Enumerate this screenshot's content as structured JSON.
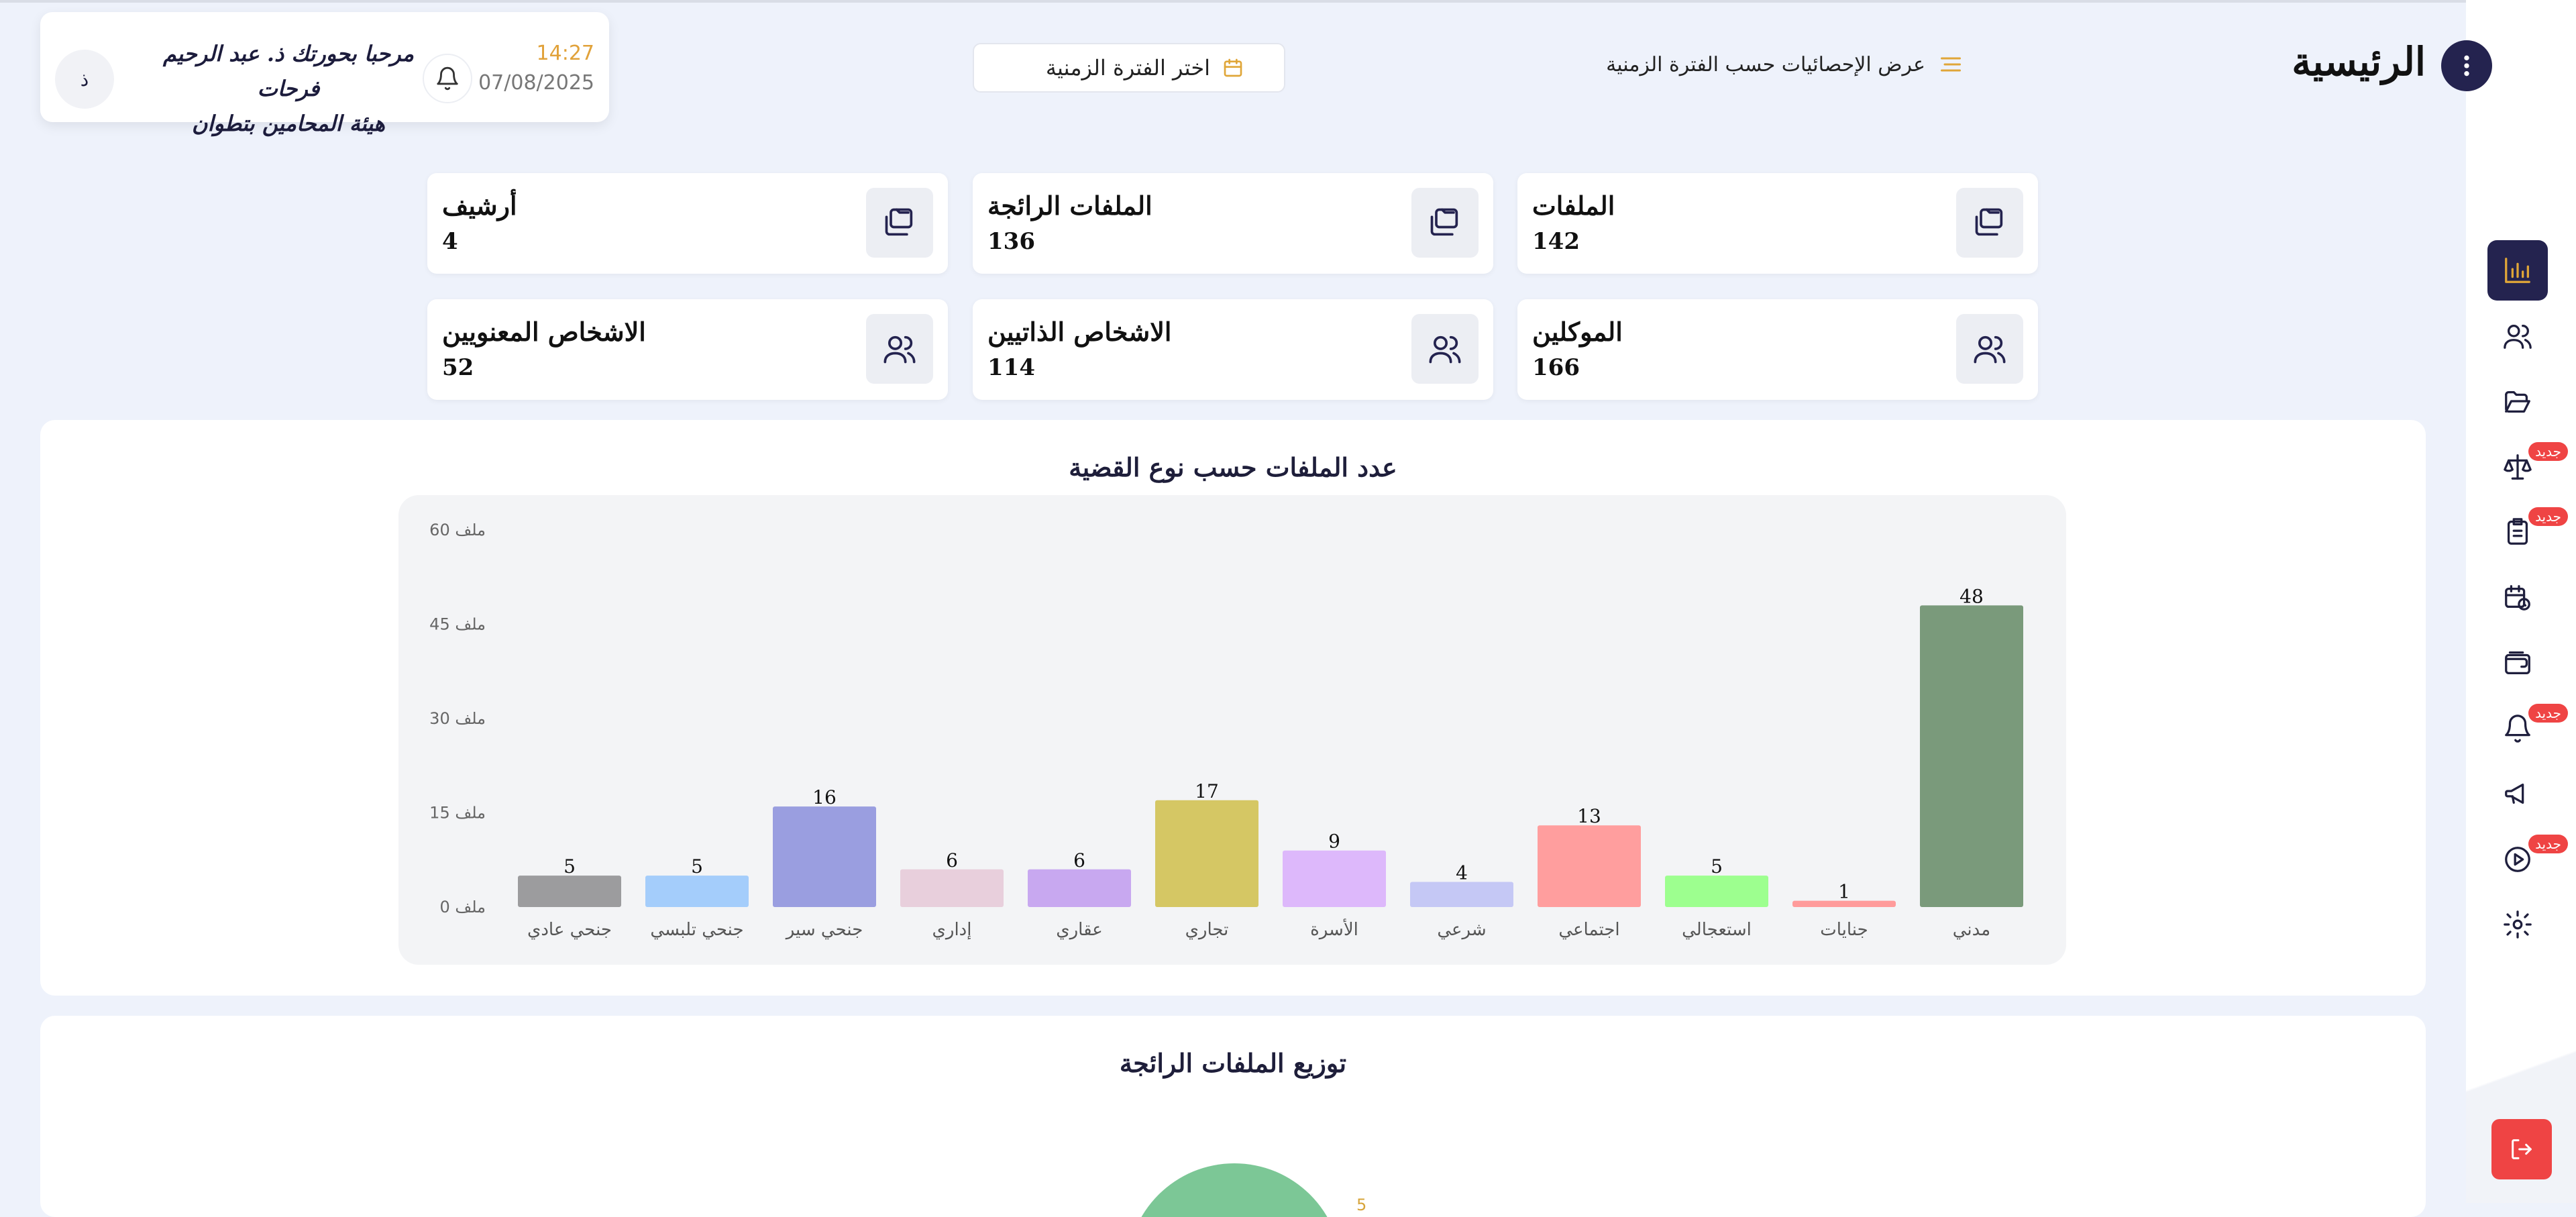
{
  "header": {
    "title": "الرئيسية",
    "stats_filter_label": "عرض الإحصائيات حسب الفترة الزمنية",
    "date_picker_label": "اختر الفترة الزمنية"
  },
  "user": {
    "time": "14:27",
    "date": "07/08/2025",
    "greeting_line1": "مرحبا بحورتك ذ. عبد الرحيم فرحات",
    "greeting_line2": "هيئة المحامين بتطوان",
    "avatar_initial": "ذ"
  },
  "stats": [
    {
      "label": "الملفات",
      "value": "142",
      "icon": "folder-icon"
    },
    {
      "label": "الملفات الرائجة",
      "value": "136",
      "icon": "folder-icon"
    },
    {
      "label": "أرشيف",
      "value": "4",
      "icon": "folder-icon"
    },
    {
      "label": "الموكلين",
      "value": "166",
      "icon": "users-icon"
    },
    {
      "label": "الاشخاص الذاتيين",
      "value": "114",
      "icon": "users-icon"
    },
    {
      "label": "الاشخاص المعنويين",
      "value": "52",
      "icon": "users-icon"
    }
  ],
  "sidebar": {
    "items": [
      {
        "icon": "bar-chart-icon",
        "active": true,
        "badge": ""
      },
      {
        "icon": "users-icon",
        "active": false,
        "badge": ""
      },
      {
        "icon": "folder-open-icon",
        "active": false,
        "badge": ""
      },
      {
        "icon": "scale-icon",
        "active": false,
        "badge": "جديد"
      },
      {
        "icon": "clipboard-list-icon",
        "active": false,
        "badge": "جديد"
      },
      {
        "icon": "calendar-clock-icon",
        "active": false,
        "badge": ""
      },
      {
        "icon": "wallet-icon",
        "active": false,
        "badge": ""
      },
      {
        "icon": "bell-icon",
        "active": false,
        "badge": "جديد"
      },
      {
        "icon": "megaphone-icon",
        "active": false,
        "badge": ""
      },
      {
        "icon": "play-circle-icon",
        "active": false,
        "badge": "جديد"
      },
      {
        "icon": "gear-icon",
        "active": false,
        "badge": ""
      }
    ],
    "logout_icon": "logout-icon"
  },
  "chart_data": {
    "type": "bar",
    "title": "عدد الملفات حسب نوع القضية",
    "categories": [
      "مدني",
      "جنايات",
      "استعجالي",
      "اجتماعي",
      "شرعي",
      "الأسرة",
      "تجاري",
      "عقاري",
      "إداري",
      "جنحي سير",
      "جنحي تلبسي",
      "جنحي عادي"
    ],
    "values": [
      48,
      1,
      5,
      13,
      4,
      9,
      17,
      6,
      6,
      16,
      5,
      5
    ],
    "colors": [
      "#7a9a7b",
      "#ff9b9b",
      "#9dff8f",
      "#ff9e9e",
      "#c5c8f5",
      "#ddb8fb",
      "#d5c764",
      "#c8a8f0",
      "#e8cfdc",
      "#9a9ee0",
      "#a4cdfb",
      "#9c9c9e"
    ],
    "yticks": [
      "0 ملف",
      "15 ملف",
      "30 ملف",
      "45 ملف",
      "60 ملف"
    ],
    "ylim": [
      0,
      60
    ],
    "grid": false
  },
  "second_panel": {
    "title": "توزيع الملفات الرائجة",
    "visible_label": "5"
  }
}
